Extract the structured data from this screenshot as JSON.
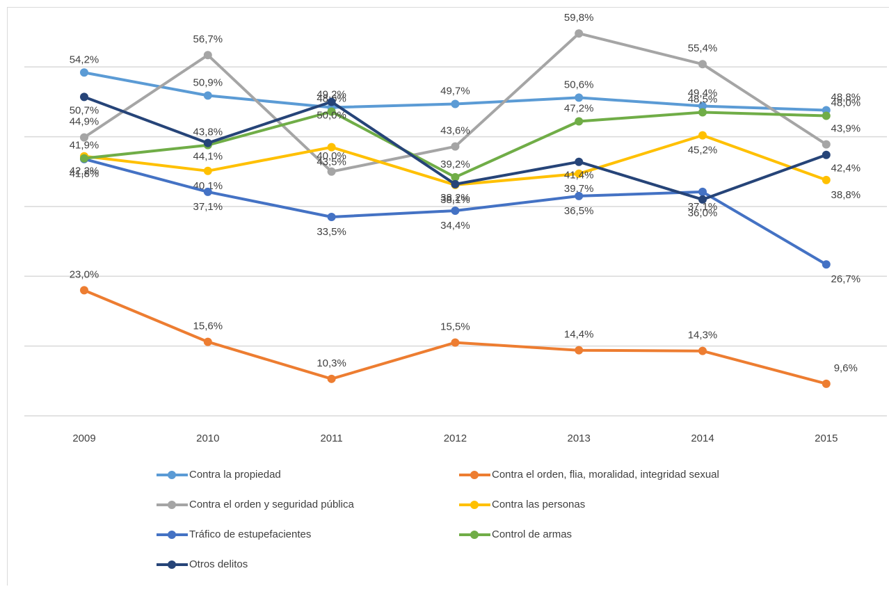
{
  "chart_data": {
    "type": "line",
    "categories": [
      "2009",
      "2010",
      "2011",
      "2012",
      "2013",
      "2014",
      "2015"
    ],
    "ylim": [
      5,
      63
    ],
    "yticks": [
      5,
      15,
      25,
      35,
      45,
      55
    ],
    "grid": true,
    "legend": "bottom",
    "series": [
      {
        "name": "Contra la propiedad",
        "color": "#5b9bd5",
        "values": [
          54.2,
          50.9,
          49.2,
          49.7,
          50.6,
          49.4,
          48.8
        ],
        "value_labels": [
          "54,2%",
          "50,9%",
          "49,2%",
          "49,7%",
          "50,6%",
          "49,4%",
          "48,8%"
        ]
      },
      {
        "name": "Contra el orden, flia, moralidad, integridad sexual",
        "color": "#ed7d31",
        "values": [
          23.0,
          15.6,
          10.3,
          15.5,
          14.4,
          14.3,
          9.6
        ],
        "value_labels": [
          "23,0%",
          "15,6%",
          "10,3%",
          "15,5%",
          "14,4%",
          "14,3%",
          "9,6%"
        ]
      },
      {
        "name": "Contra el orden y seguridad pública",
        "color": "#a5a5a5",
        "values": [
          44.9,
          56.7,
          40.0,
          43.6,
          59.8,
          55.4,
          43.9
        ],
        "value_labels": [
          "44,9%",
          "56,7%",
          "40,0%",
          "43,6%",
          "59,8%",
          "55,4%",
          "43,9%"
        ]
      },
      {
        "name": "Contra las personas",
        "color": "#ffc000",
        "values": [
          42.2,
          40.1,
          43.5,
          38.1,
          39.7,
          45.2,
          38.8
        ],
        "value_labels": [
          "42,2%",
          "40,1%",
          "43,5%",
          "38,1%",
          "39,7%",
          "45,2%",
          "38,8%"
        ]
      },
      {
        "name": "Tráfico de estupefacientes",
        "color": "#4472c4",
        "values": [
          41.8,
          37.1,
          33.5,
          34.4,
          36.5,
          37.1,
          26.7
        ],
        "value_labels": [
          "41,8%",
          "37,1%",
          "33,5%",
          "34,4%",
          "36,5%",
          "37,1%",
          "26,7%"
        ]
      },
      {
        "name": "Control de armas",
        "color": "#70ad47",
        "values": [
          41.9,
          43.8,
          48.6,
          39.2,
          47.2,
          48.5,
          48.0
        ],
        "value_labels": [
          "41,9%",
          "43,8%",
          "48,6%",
          "39,2%",
          "47,2%",
          "48,5%",
          "48,0%"
        ]
      },
      {
        "name": "Otros delitos",
        "color": "#264478",
        "values": [
          50.7,
          44.1,
          50.0,
          38.2,
          41.4,
          36.0,
          42.4
        ],
        "value_labels": [
          "50,7%",
          "44,1%",
          "50,0%",
          "38,2%",
          "41,4%",
          "36,0%",
          "42,4%"
        ]
      }
    ]
  }
}
